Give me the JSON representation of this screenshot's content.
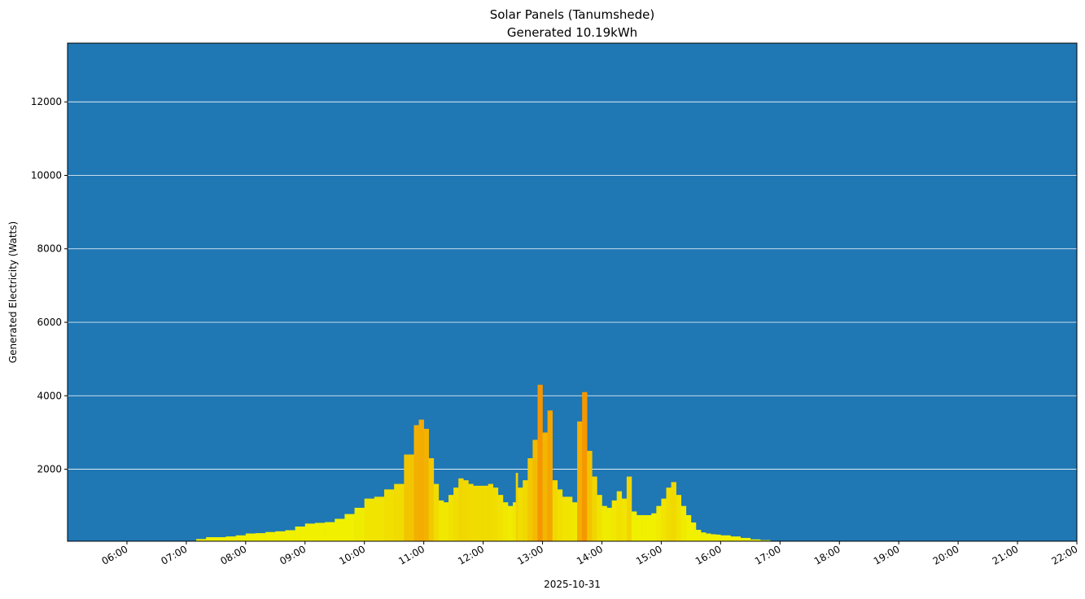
{
  "chart_data": {
    "type": "bar",
    "title": "Solar Panels (Tanumshede)",
    "subtitle": "Generated 10.19kWh",
    "xlabel": "2025-10-31",
    "ylabel": "Generated Electricity (Watts)",
    "xlim": [
      "05:00",
      "22:00"
    ],
    "ylim": [
      40,
      13600
    ],
    "x_ticks": [
      "06:00",
      "07:00",
      "08:00",
      "09:00",
      "10:00",
      "11:00",
      "12:00",
      "13:00",
      "14:00",
      "15:00",
      "16:00",
      "17:00",
      "18:00",
      "19:00",
      "20:00",
      "21:00",
      "22:00"
    ],
    "y_ticks": [
      2000,
      4000,
      6000,
      8000,
      10000,
      12000
    ],
    "grid": "horizontal",
    "colors": {
      "background": "#1f77b4",
      "grid": "#ffffff",
      "low": "#f0f000",
      "high": "#f59500"
    },
    "times": [
      "07:10",
      "07:20",
      "07:30",
      "07:40",
      "07:50",
      "08:00",
      "08:10",
      "08:20",
      "08:30",
      "08:40",
      "08:50",
      "09:00",
      "09:10",
      "09:20",
      "09:30",
      "09:40",
      "09:50",
      "10:00",
      "10:10",
      "10:20",
      "10:30",
      "10:40",
      "10:50",
      "10:55",
      "11:00",
      "11:05",
      "11:10",
      "11:15",
      "11:20",
      "11:25",
      "11:30",
      "11:35",
      "11:40",
      "11:45",
      "11:50",
      "12:00",
      "12:05",
      "12:10",
      "12:15",
      "12:20",
      "12:25",
      "12:30",
      "12:33",
      "12:35",
      "12:40",
      "12:45",
      "12:50",
      "12:55",
      "13:00",
      "13:05",
      "13:10",
      "13:15",
      "13:20",
      "13:25",
      "13:30",
      "13:35",
      "13:40",
      "13:45",
      "13:50",
      "13:55",
      "14:00",
      "14:05",
      "14:10",
      "14:15",
      "14:20",
      "14:25",
      "14:30",
      "14:35",
      "14:40",
      "14:45",
      "14:50",
      "14:55",
      "15:00",
      "15:05",
      "15:10",
      "15:15",
      "15:20",
      "15:25",
      "15:30",
      "15:35",
      "15:40",
      "15:45",
      "15:50",
      "15:55",
      "16:00",
      "16:10",
      "16:20",
      "16:30",
      "16:40",
      "16:50"
    ],
    "values": [
      100,
      150,
      150,
      170,
      200,
      250,
      260,
      290,
      310,
      340,
      440,
      520,
      540,
      560,
      650,
      780,
      950,
      1200,
      1250,
      1450,
      1600,
      2400,
      3200,
      3350,
      3100,
      2300,
      1600,
      1150,
      1100,
      1300,
      1500,
      1750,
      1700,
      1600,
      1550,
      1550,
      1600,
      1500,
      1300,
      1100,
      1000,
      1100,
      1900,
      1500,
      1700,
      2300,
      2800,
      4300,
      3000,
      3600,
      1700,
      1450,
      1250,
      1250,
      1100,
      3300,
      4100,
      2500,
      1800,
      1300,
      1000,
      950,
      1150,
      1400,
      1200,
      1800,
      850,
      750,
      750,
      750,
      800,
      1000,
      1200,
      1500,
      1650,
      1300,
      1000,
      750,
      550,
      350,
      280,
      250,
      230,
      220,
      200,
      170,
      130,
      90,
      70,
      50
    ]
  }
}
